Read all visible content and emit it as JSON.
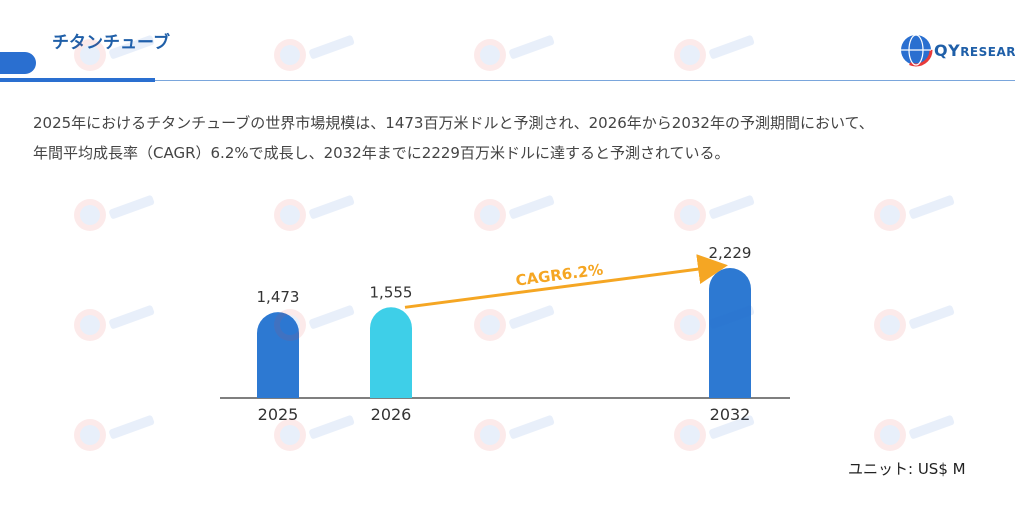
{
  "header": {
    "title": "チタンチューブ"
  },
  "logo": {
    "mark": "QY",
    "text": "RESEARCH"
  },
  "summary": {
    "line1": "2025年におけるチタンチューブの世界市場規模は、1473百万米ドルと予測され、2026年から2032年の予測期間において、",
    "line2": "年間平均成長率（CAGR）6.2%で成長し、2032年までに2229百万米ドルに達すると予測されている。"
  },
  "unit_label": "ユニット: US$ M",
  "chart_data": {
    "type": "bar",
    "categories": [
      "2025",
      "2026",
      "2032"
    ],
    "values": [
      1473,
      1555,
      2229
    ],
    "value_labels": [
      "1,473",
      "1,555",
      "2,229"
    ],
    "colors": [
      "#2d79d2",
      "#3ecfe8",
      "#2d79d2"
    ],
    "annotation": {
      "text": "CAGR6.2%",
      "from": "2026",
      "to": "2032",
      "color": "#f5a623"
    },
    "title": "",
    "xlabel": "",
    "ylabel": "",
    "grid": false
  }
}
